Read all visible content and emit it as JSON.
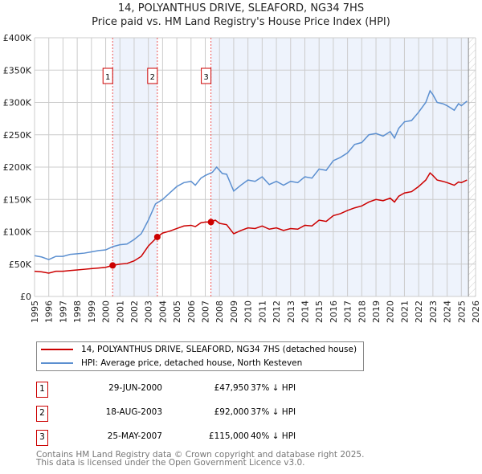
{
  "title": "14, POLYANTHUS DRIVE, SLEAFORD, NG34 7HS",
  "subtitle": "Price paid vs. HM Land Registry's House Price Index (HPI)",
  "chart_data": {
    "type": "line",
    "xlim": [
      1995,
      2026
    ],
    "ylim": [
      0,
      400000
    ],
    "x_ticks": [
      "1995",
      "1996",
      "1997",
      "1998",
      "1999",
      "2000",
      "2001",
      "2002",
      "2003",
      "2004",
      "2005",
      "2006",
      "2007",
      "2008",
      "2009",
      "2010",
      "2011",
      "2012",
      "2013",
      "2014",
      "2015",
      "2016",
      "2017",
      "2018",
      "2019",
      "2020",
      "2021",
      "2022",
      "2023",
      "2024",
      "2025",
      "2026"
    ],
    "y_ticks": [
      {
        "v": 0,
        "label": "£0"
      },
      {
        "v": 50000,
        "label": "£50K"
      },
      {
        "v": 100000,
        "label": "£100K"
      },
      {
        "v": 150000,
        "label": "£150K"
      },
      {
        "v": 200000,
        "label": "£200K"
      },
      {
        "v": 250000,
        "label": "£250K"
      },
      {
        "v": 300000,
        "label": "£300K"
      },
      {
        "v": 350000,
        "label": "£350K"
      },
      {
        "v": 400000,
        "label": "£400K"
      }
    ],
    "grid": true,
    "data_end": 2025.5,
    "series": [
      {
        "name": "14, POLYANTHUS DRIVE, SLEAFORD, NG34 7HS (detached house)",
        "color": "#cc0000",
        "points": [
          [
            1995,
            39
          ],
          [
            1995.5,
            38
          ],
          [
            1996,
            36
          ],
          [
            1996.5,
            39
          ],
          [
            1997,
            39
          ],
          [
            1997.5,
            40
          ],
          [
            1998,
            41
          ],
          [
            1998.5,
            42
          ],
          [
            1999,
            43
          ],
          [
            1999.5,
            44
          ],
          [
            2000,
            45
          ],
          [
            2000.49,
            47.95
          ],
          [
            2001,
            50
          ],
          [
            2001.5,
            51
          ],
          [
            2002,
            55
          ],
          [
            2002.5,
            62
          ],
          [
            2003,
            78
          ],
          [
            2003.63,
            92
          ],
          [
            2004,
            98
          ],
          [
            2004.5,
            101
          ],
          [
            2005,
            105
          ],
          [
            2005.5,
            109
          ],
          [
            2006,
            110
          ],
          [
            2006.3,
            108
          ],
          [
            2006.7,
            114
          ],
          [
            2007,
            115
          ],
          [
            2007.4,
            115
          ],
          [
            2007.7,
            118
          ],
          [
            2008,
            113
          ],
          [
            2008.5,
            111
          ],
          [
            2009,
            97
          ],
          [
            2009.5,
            102
          ],
          [
            2010,
            106
          ],
          [
            2010.5,
            105
          ],
          [
            2011,
            109
          ],
          [
            2011.5,
            104
          ],
          [
            2012,
            106
          ],
          [
            2012.5,
            102
          ],
          [
            2013,
            105
          ],
          [
            2013.5,
            104
          ],
          [
            2014,
            110
          ],
          [
            2014.5,
            109
          ],
          [
            2015,
            118
          ],
          [
            2015.5,
            116
          ],
          [
            2016,
            125
          ],
          [
            2016.5,
            128
          ],
          [
            2017,
            133
          ],
          [
            2017.5,
            137
          ],
          [
            2018,
            140
          ],
          [
            2018.5,
            146
          ],
          [
            2019,
            150
          ],
          [
            2019.5,
            148
          ],
          [
            2020,
            152
          ],
          [
            2020.3,
            146
          ],
          [
            2020.6,
            155
          ],
          [
            2021,
            160
          ],
          [
            2021.5,
            162
          ],
          [
            2022,
            170
          ],
          [
            2022.5,
            180
          ],
          [
            2022.8,
            191
          ],
          [
            2023,
            187
          ],
          [
            2023.3,
            180
          ],
          [
            2023.7,
            178
          ],
          [
            2024,
            176
          ],
          [
            2024.5,
            172
          ],
          [
            2024.8,
            177
          ],
          [
            2025,
            176
          ],
          [
            2025.4,
            180
          ]
        ]
      },
      {
        "name": "HPI: Average price, detached house, North Kesteven",
        "color": "#5b8fd0",
        "points": [
          [
            1995,
            63
          ],
          [
            1995.5,
            61
          ],
          [
            1996,
            57
          ],
          [
            1996.5,
            62
          ],
          [
            1997,
            62
          ],
          [
            1997.5,
            65
          ],
          [
            1998,
            66
          ],
          [
            1998.5,
            67
          ],
          [
            1999,
            69
          ],
          [
            1999.5,
            71
          ],
          [
            2000,
            72
          ],
          [
            2000.5,
            77
          ],
          [
            2001,
            80
          ],
          [
            2001.5,
            81
          ],
          [
            2002,
            88
          ],
          [
            2002.5,
            97
          ],
          [
            2003,
            118
          ],
          [
            2003.5,
            143
          ],
          [
            2004,
            150
          ],
          [
            2004.5,
            160
          ],
          [
            2005,
            170
          ],
          [
            2005.5,
            176
          ],
          [
            2006,
            178
          ],
          [
            2006.3,
            172
          ],
          [
            2006.7,
            183
          ],
          [
            2007,
            187
          ],
          [
            2007.5,
            192
          ],
          [
            2007.8,
            200
          ],
          [
            2008.2,
            190
          ],
          [
            2008.5,
            189
          ],
          [
            2009,
            163
          ],
          [
            2009.5,
            172
          ],
          [
            2010,
            180
          ],
          [
            2010.5,
            178
          ],
          [
            2011,
            185
          ],
          [
            2011.5,
            173
          ],
          [
            2012,
            178
          ],
          [
            2012.5,
            172
          ],
          [
            2013,
            178
          ],
          [
            2013.5,
            176
          ],
          [
            2014,
            185
          ],
          [
            2014.5,
            183
          ],
          [
            2015,
            197
          ],
          [
            2015.5,
            195
          ],
          [
            2016,
            210
          ],
          [
            2016.5,
            215
          ],
          [
            2017,
            222
          ],
          [
            2017.5,
            235
          ],
          [
            2018,
            238
          ],
          [
            2018.5,
            250
          ],
          [
            2019,
            252
          ],
          [
            2019.5,
            248
          ],
          [
            2020,
            255
          ],
          [
            2020.3,
            245
          ],
          [
            2020.6,
            260
          ],
          [
            2021,
            270
          ],
          [
            2021.5,
            272
          ],
          [
            2022,
            285
          ],
          [
            2022.5,
            300
          ],
          [
            2022.8,
            318
          ],
          [
            2023,
            312
          ],
          [
            2023.3,
            300
          ],
          [
            2023.7,
            298
          ],
          [
            2024,
            295
          ],
          [
            2024.5,
            288
          ],
          [
            2024.8,
            298
          ],
          [
            2025,
            295
          ],
          [
            2025.4,
            302
          ]
        ]
      }
    ],
    "sales": [
      {
        "n": "1",
        "x": 2000.49,
        "price": 47950,
        "date": "29-JUN-2000",
        "price_label": "£47,950",
        "hpi": "37% ↓ HPI"
      },
      {
        "n": "2",
        "x": 2003.63,
        "price": 92000,
        "date": "18-AUG-2003",
        "price_label": "£92,000",
        "hpi": "37% ↓ HPI"
      },
      {
        "n": "3",
        "x": 2007.4,
        "price": 115000,
        "date": "25-MAY-2007",
        "price_label": "£115,000",
        "hpi": "40% ↓ HPI"
      }
    ]
  },
  "legend": {
    "red": "14, POLYANTHUS DRIVE, SLEAFORD, NG34 7HS (detached house)",
    "blue": "HPI: Average price, detached house, North Kesteven"
  },
  "footer": {
    "line1": "Contains HM Land Registry data © Crown copyright and database right 2025.",
    "line2": "This data is licensed under the Open Government Licence v3.0."
  }
}
